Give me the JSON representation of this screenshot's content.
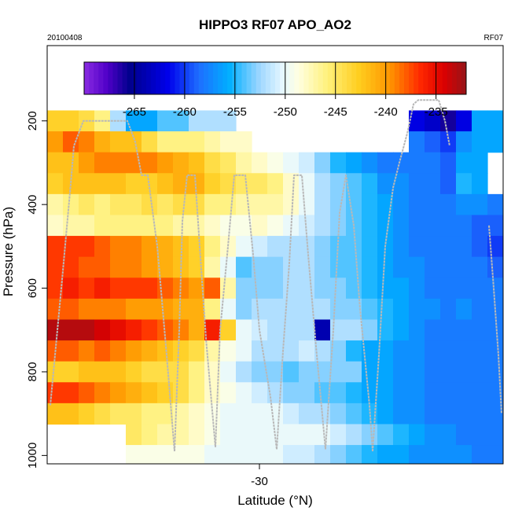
{
  "chart_data": {
    "type": "heatmap",
    "title": "HIPPO3 RF07 APO_AO2",
    "date_label": "20100408",
    "flight_label": "RF07",
    "xlabel": "Latitude (°N)",
    "ylabel": "Pressure (hPa)",
    "x_ticks": [
      -30
    ],
    "y_ticks": [
      200,
      400,
      600,
      800,
      1000
    ],
    "xlim": [
      -43.5,
      -14.5
    ],
    "ylim": [
      1020,
      20
    ],
    "colorbar": {
      "range": [
        -270,
        -232
      ],
      "ticks": [
        -265,
        -260,
        -255,
        -250,
        -245,
        -240,
        -235
      ]
    },
    "pressure_levels": [
      200,
      250,
      300,
      350,
      400,
      450,
      500,
      550,
      600,
      650,
      700,
      750,
      800,
      850,
      900,
      950,
      1000
    ],
    "columns": [
      {
        "lat": -43,
        "values": [
          -243,
          -240,
          -242,
          -243,
          -247,
          -248,
          -237,
          -237,
          -237,
          -238,
          -233,
          -238,
          -243,
          -237,
          -242,
          null,
          null
        ]
      },
      {
        "lat": -42,
        "values": [
          -243,
          -238,
          -242,
          -242,
          -246,
          -247,
          -237,
          -237,
          -236,
          -238,
          -233,
          -238,
          -243,
          -237,
          -242,
          null,
          null
        ]
      },
      {
        "lat": -41,
        "values": [
          -244,
          -239,
          -240,
          -242,
          -245,
          -247,
          -237,
          -238,
          -237,
          -239,
          -233,
          -239,
          -242,
          -238,
          -243,
          null,
          null
        ]
      },
      {
        "lat": -40,
        "values": [
          -246,
          -241,
          -239,
          -242,
          -246,
          -246,
          -238,
          -238,
          -236,
          -239,
          -234,
          -238,
          -242,
          -239,
          -244,
          null,
          null
        ]
      },
      {
        "lat": -39,
        "values": [
          -252,
          -242,
          -239,
          -242,
          -245,
          -246,
          -239,
          -239,
          -237,
          -239,
          -235,
          -239,
          -242,
          -240,
          -245,
          null,
          null
        ]
      },
      {
        "lat": -38,
        "values": [
          -256,
          -242,
          -239,
          -243,
          -245,
          -246,
          -239,
          -239,
          -237,
          -240,
          -236,
          -240,
          -243,
          -241,
          -245,
          -245,
          -249
        ]
      },
      {
        "lat": -37,
        "values": [
          -256,
          -244,
          -239,
          -243,
          -244,
          -246,
          -240,
          -240,
          -237,
          -240,
          -237,
          -241,
          -244,
          -242,
          -246,
          -246,
          -249
        ]
      },
      {
        "lat": -36,
        "values": [
          -254,
          -246,
          -240,
          -242,
          -245,
          -246,
          -241,
          -241,
          -238,
          -240,
          -238,
          -242,
          -244,
          -243,
          -246,
          -247,
          -249
        ]
      },
      {
        "lat": -35,
        "values": [
          -254,
          -246,
          -241,
          -241,
          -244,
          -247,
          -242,
          -242,
          -239,
          -241,
          -239,
          -243,
          -244,
          -244,
          -247,
          -247,
          -249
        ]
      },
      {
        "lat": -34,
        "values": [
          -252,
          -246,
          -242,
          -241,
          -244,
          -247,
          -243,
          -243,
          -240,
          -241,
          -241,
          -244,
          -246,
          -246,
          -248,
          -248,
          -249
        ]
      },
      {
        "lat": -33,
        "values": [
          -252,
          -247,
          -244,
          -243,
          -246,
          -248,
          -246,
          -247,
          -238,
          -246,
          -236,
          -247,
          -248,
          -248,
          -249,
          -249,
          -250
        ]
      },
      {
        "lat": -32,
        "values": [
          -252,
          -248,
          -245,
          -244,
          -246,
          -249,
          -248,
          -250,
          -247,
          -250,
          -243,
          -249,
          -250,
          -249,
          -250,
          -250,
          -250
        ]
      },
      {
        "lat": -31,
        "values": [
          null,
          -248,
          -247,
          -245,
          -247,
          -249,
          -250,
          -254,
          -253,
          -253,
          -250,
          -250,
          -252,
          -250,
          -250,
          -250,
          -250
        ]
      },
      {
        "lat": -30,
        "values": [
          null,
          null,
          -248,
          -245,
          -247,
          -248,
          -251,
          -253,
          -253,
          -252,
          -251,
          -252,
          -253,
          -251,
          -250,
          -250,
          -250
        ]
      },
      {
        "lat": -29,
        "values": [
          null,
          null,
          -249,
          -246,
          -247,
          -249,
          -252,
          -253,
          -253,
          -252,
          -252,
          -252,
          -253,
          -252,
          -250,
          -250,
          -250
        ]
      },
      {
        "lat": -28,
        "values": [
          null,
          null,
          -250,
          -248,
          -248,
          -250,
          -252,
          -252,
          -252,
          -252,
          -252,
          -252,
          -254,
          -253,
          -251,
          -250,
          -251
        ]
      },
      {
        "lat": -27,
        "values": [
          null,
          null,
          -251,
          -250,
          -250,
          -251,
          -252,
          -252,
          -252,
          -252,
          -252,
          -251,
          -253,
          -253,
          -252,
          -250,
          -251
        ]
      },
      {
        "lat": -26,
        "values": [
          null,
          null,
          -253,
          -252,
          -252,
          -252,
          -253,
          -253,
          -253,
          -252,
          -264,
          -252,
          -253,
          -254,
          -252,
          -250,
          -252
        ]
      },
      {
        "lat": -25,
        "values": [
          null,
          null,
          -255,
          -253,
          -253,
          -253,
          -254,
          -254,
          -253,
          -253,
          -252,
          -253,
          -253,
          -254,
          -253,
          -251,
          -253
        ]
      },
      {
        "lat": -24,
        "values": [
          null,
          null,
          -256,
          -254,
          -254,
          -254,
          -254,
          -254,
          -254,
          -253,
          -252,
          -255,
          -253,
          -255,
          -254,
          -252,
          -254
        ]
      },
      {
        "lat": -23,
        "values": [
          null,
          null,
          -257,
          -255,
          -255,
          -255,
          -255,
          -255,
          -255,
          -254,
          -253,
          -256,
          -256,
          -256,
          -255,
          -253,
          -255
        ]
      },
      {
        "lat": -22,
        "values": [
          null,
          null,
          -258,
          -257,
          -256,
          -256,
          -256,
          -256,
          -256,
          -255,
          -255,
          -256,
          -256,
          -256,
          -256,
          -254,
          -256
        ]
      },
      {
        "lat": -21,
        "values": [
          null,
          null,
          -258,
          -257,
          -257,
          -257,
          -257,
          -257,
          -256,
          -256,
          -256,
          -257,
          -257,
          -257,
          -257,
          -255,
          -256
        ]
      },
      {
        "lat": -20,
        "values": [
          -262,
          -258,
          -258,
          -258,
          -258,
          -258,
          -258,
          -257,
          -257,
          -257,
          -257,
          -257,
          -257,
          -257,
          -257,
          -256,
          -257
        ]
      },
      {
        "lat": -19,
        "values": [
          -263,
          -259,
          -258,
          -258,
          -258,
          -258,
          -258,
          -258,
          -258,
          -257,
          -258,
          -258,
          -258,
          -258,
          -258,
          -257,
          -257
        ]
      },
      {
        "lat": -18,
        "values": [
          -266,
          -260,
          -259,
          -259,
          -258,
          -258,
          -258,
          -258,
          -258,
          -258,
          -258,
          -258,
          -258,
          -258,
          -258,
          -257,
          -257
        ]
      },
      {
        "lat": -17,
        "values": [
          -262,
          -257,
          -256,
          -255,
          -257,
          -258,
          -258,
          -258,
          -258,
          -257,
          -258,
          -258,
          -258,
          -258,
          -258,
          -258,
          -257
        ]
      },
      {
        "lat": -16,
        "values": [
          -256,
          -256,
          -256,
          -256,
          -257,
          -259,
          -259,
          -258,
          -258,
          -258,
          -258,
          -258,
          -258,
          -258,
          -258,
          -258,
          -258
        ]
      },
      {
        "lat": -15,
        "values": [
          -256,
          -256,
          null,
          null,
          -258,
          -259,
          -260,
          -259,
          -258,
          -258,
          -258,
          -258,
          -258,
          -258,
          -258,
          -258,
          -258
        ]
      }
    ]
  }
}
